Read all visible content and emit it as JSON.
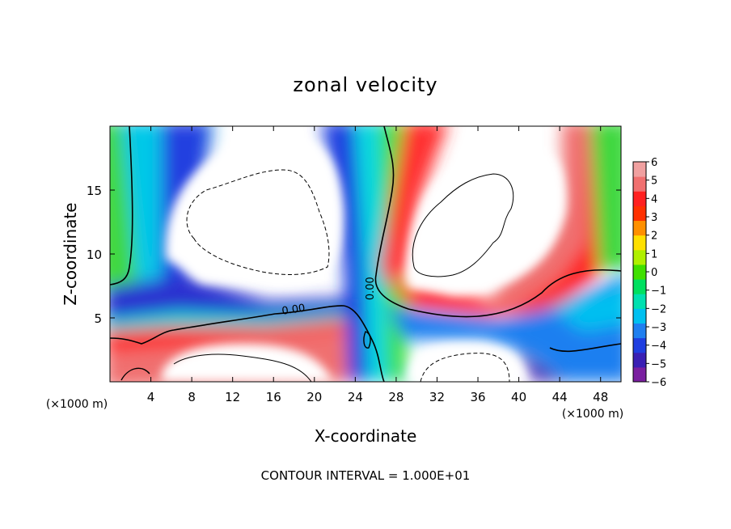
{
  "chart_data": {
    "type": "heatmap",
    "title": "zonal velocity",
    "xlabel": "X-coordinate",
    "ylabel": "Z-coordinate",
    "x_unit": "(×1000 m)",
    "footer": "CONTOUR INTERVAL = 1.000E+01",
    "xlim": [
      0,
      50
    ],
    "ylim": [
      0,
      20
    ],
    "x_ticks": [
      4,
      8,
      12,
      16,
      20,
      24,
      28,
      32,
      36,
      40,
      44,
      48
    ],
    "x_tick_labels": [
      "4",
      "8",
      "12",
      "16",
      "20",
      "24",
      "28",
      "32",
      "36",
      "40",
      "44",
      "48"
    ],
    "y_ticks": [
      5,
      10,
      15
    ],
    "y_tick_labels": [
      "5",
      "10",
      "15"
    ],
    "colorbar": {
      "levels": [
        -6,
        -5,
        -4,
        -3,
        -2,
        -1,
        0,
        1,
        2,
        3,
        4,
        5,
        6
      ],
      "labels": [
        "6",
        "5",
        "4",
        "3",
        "2",
        "1",
        "0",
        "−1",
        "−2",
        "−3",
        "−4",
        "−5",
        "−6"
      ],
      "colors": [
        "#7a1fa0",
        "#3a1fb4",
        "#1f3ee0",
        "#1f7ff0",
        "#00c0f0",
        "#00e0b0",
        "#00e060",
        "#40e000",
        "#b0f000",
        "#ffe000",
        "#ff9000",
        "#ff3000",
        "#ff2020",
        "#f07070",
        "#f0a0a0"
      ]
    },
    "contour_labels": [
      {
        "text": "0.00",
        "x": 18,
        "z": 5.4,
        "angle": -8
      },
      {
        "text": "0.00",
        "x": 25.8,
        "z": 7.3,
        "angle": -90
      }
    ]
  }
}
